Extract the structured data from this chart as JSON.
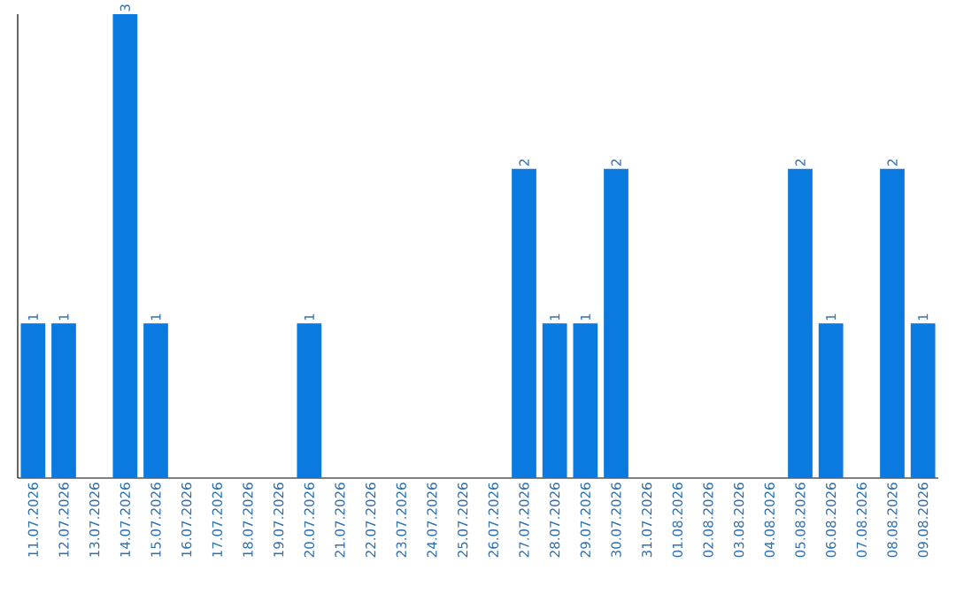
{
  "chart_data": {
    "type": "bar",
    "categories": [
      "11.07.2026",
      "12.07.2026",
      "13.07.2026",
      "14.07.2026",
      "15.07.2026",
      "16.07.2026",
      "17.07.2026",
      "18.07.2026",
      "19.07.2026",
      "20.07.2026",
      "21.07.2026",
      "22.07.2026",
      "23.07.2026",
      "24.07.2026",
      "25.07.2026",
      "26.07.2026",
      "27.07.2026",
      "28.07.2026",
      "29.07.2026",
      "30.07.2026",
      "31.07.2026",
      "01.08.2026",
      "02.08.2026",
      "03.08.2026",
      "04.08.2026",
      "05.08.2026",
      "06.08.2026",
      "07.08.2026",
      "08.08.2026",
      "09.08.2026"
    ],
    "values": [
      1,
      1,
      0,
      3,
      1,
      0,
      0,
      0,
      0,
      1,
      0,
      0,
      0,
      0,
      0,
      0,
      2,
      1,
      1,
      2,
      0,
      0,
      0,
      0,
      0,
      2,
      1,
      0,
      2,
      1
    ],
    "value_labels": [
      "1",
      "1",
      null,
      "3",
      "1",
      null,
      null,
      null,
      null,
      "1",
      null,
      null,
      null,
      null,
      null,
      null,
      "2",
      "1",
      "1",
      "2",
      null,
      null,
      null,
      null,
      null,
      "2",
      "1",
      null,
      "2",
      "1"
    ],
    "color": "#0a7ae0",
    "tick_labels": "x",
    "grid": false
  }
}
